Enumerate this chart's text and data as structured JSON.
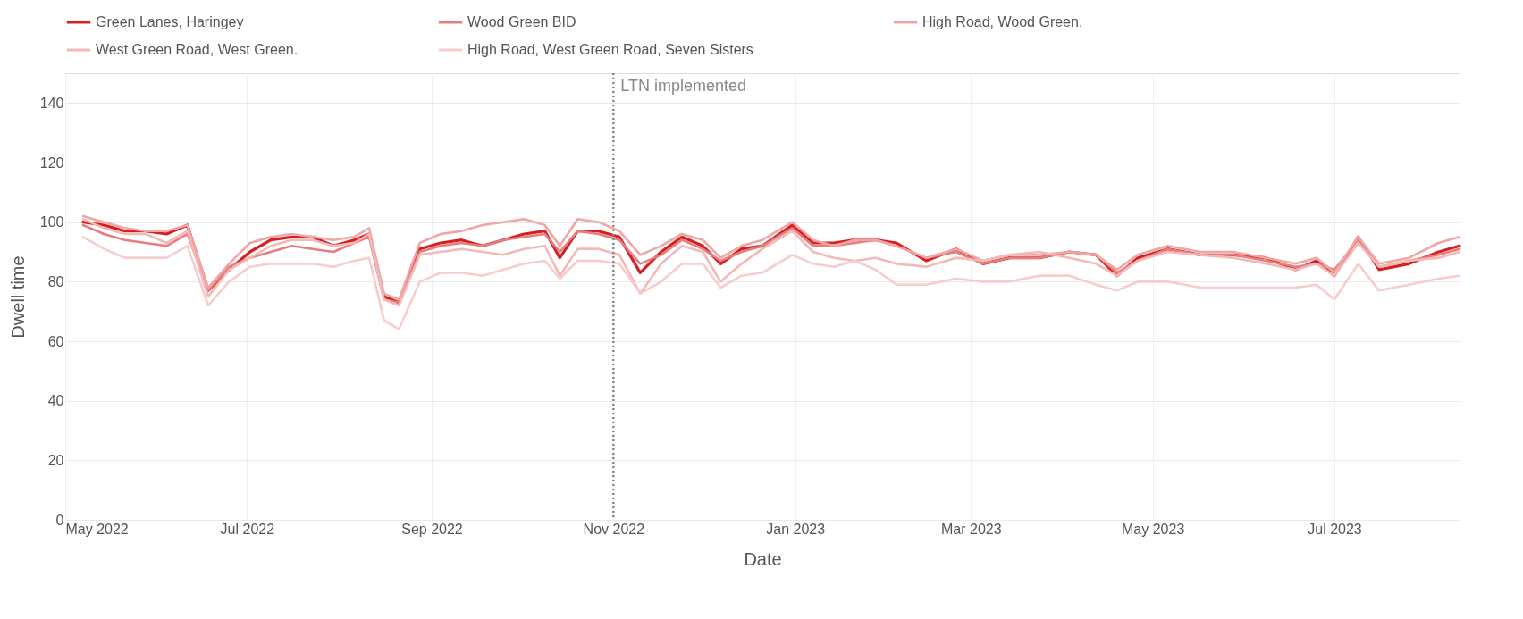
{
  "chart_data": {
    "type": "line",
    "xlabel": "Date",
    "ylabel": "Dwell time",
    "x": [
      "2022-05-07",
      "2022-05-14",
      "2022-05-21",
      "2022-05-28",
      "2022-06-04",
      "2022-06-11",
      "2022-06-18",
      "2022-06-25",
      "2022-07-02",
      "2022-07-09",
      "2022-07-16",
      "2022-07-23",
      "2022-07-30",
      "2022-08-06",
      "2022-08-11",
      "2022-08-16",
      "2022-08-21",
      "2022-08-28",
      "2022-09-04",
      "2022-09-11",
      "2022-09-18",
      "2022-09-25",
      "2022-10-02",
      "2022-10-09",
      "2022-10-14",
      "2022-10-20",
      "2022-10-27",
      "2022-11-03",
      "2022-11-10",
      "2022-11-17",
      "2022-11-24",
      "2022-12-01",
      "2022-12-07",
      "2022-12-14",
      "2022-12-21",
      "2022-12-31",
      "2023-01-07",
      "2023-01-14",
      "2023-01-21",
      "2023-01-28",
      "2023-02-04",
      "2023-02-14",
      "2023-02-24",
      "2023-03-05",
      "2023-03-14",
      "2023-03-24",
      "2023-04-03",
      "2023-04-12",
      "2023-04-19",
      "2023-04-26",
      "2023-05-06",
      "2023-05-17",
      "2023-05-28",
      "2023-06-08",
      "2023-06-18",
      "2023-06-25",
      "2023-07-01",
      "2023-07-09",
      "2023-07-16",
      "2023-07-26",
      "2023-08-05",
      "2023-08-12"
    ],
    "series": [
      {
        "name": "Green Lanes, Haringey",
        "color": "#d62020",
        "values": [
          100,
          99,
          97,
          97,
          96,
          99,
          77,
          84,
          90,
          94,
          95,
          95,
          92,
          94,
          96,
          75,
          73,
          91,
          93,
          94,
          92,
          94,
          96,
          97,
          88,
          97,
          97,
          95,
          83,
          90,
          95,
          92,
          86,
          91,
          92,
          99,
          93,
          93,
          94,
          94,
          93,
          87,
          91,
          86,
          88,
          88,
          90,
          89,
          82,
          88,
          91,
          89,
          89,
          88,
          84,
          87,
          82,
          95,
          84,
          86,
          90,
          92
        ]
      },
      {
        "name": "Wood Green BID",
        "color": "#e57e7e",
        "values": [
          99,
          96,
          94,
          93,
          92,
          96,
          77,
          85,
          88,
          90,
          92,
          91,
          90,
          93,
          95,
          74,
          73,
          90,
          92,
          93,
          92,
          94,
          95,
          96,
          90,
          97,
          96,
          94,
          86,
          89,
          94,
          91,
          87,
          90,
          92,
          98,
          92,
          92,
          93,
          94,
          92,
          88,
          90,
          86,
          88,
          88,
          90,
          89,
          83,
          87,
          91,
          89,
          89,
          87,
          85,
          86,
          84,
          94,
          85,
          87,
          89,
          91
        ]
      },
      {
        "name": "High Road, Wood Green.",
        "color": "#f0a6a6",
        "values": [
          102,
          100,
          98,
          97,
          97,
          99,
          78,
          86,
          93,
          95,
          96,
          95,
          94,
          95,
          98,
          76,
          74,
          93,
          96,
          97,
          99,
          100,
          101,
          99,
          92,
          101,
          100,
          97,
          89,
          92,
          96,
          94,
          88,
          92,
          94,
          100,
          94,
          92,
          94,
          94,
          92,
          88,
          91,
          87,
          89,
          89,
          90,
          89,
          84,
          89,
          92,
          90,
          90,
          88,
          86,
          88,
          83,
          95,
          86,
          88,
          93,
          95
        ]
      },
      {
        "name": "West Green Road, West Green.",
        "color": "#f2b9b9",
        "values": [
          101,
          98,
          96,
          96,
          93,
          97,
          75,
          84,
          88,
          92,
          94,
          94,
          92,
          93,
          96,
          74,
          72,
          89,
          90,
          91,
          90,
          89,
          91,
          92,
          82,
          91,
          91,
          89,
          76,
          86,
          92,
          90,
          80,
          86,
          91,
          97,
          90,
          88,
          87,
          88,
          86,
          85,
          88,
          87,
          89,
          90,
          88,
          86,
          82,
          87,
          90,
          89,
          88,
          86,
          84,
          86,
          82,
          93,
          85,
          87,
          88,
          90
        ]
      },
      {
        "name": "High Road, West Green Road, Seven Sisters",
        "color": "#f6cccc",
        "values": [
          95,
          91,
          88,
          88,
          88,
          92,
          72,
          80,
          85,
          86,
          86,
          86,
          85,
          87,
          88,
          67,
          64,
          80,
          83,
          83,
          82,
          84,
          86,
          87,
          81,
          87,
          87,
          86,
          76,
          80,
          86,
          86,
          78,
          82,
          83,
          89,
          86,
          85,
          87,
          84,
          79,
          79,
          81,
          80,
          80,
          82,
          82,
          79,
          77,
          80,
          80,
          78,
          78,
          78,
          78,
          79,
          74,
          86,
          77,
          79,
          81,
          82
        ]
      }
    ],
    "xlim": [
      "2022-05-01",
      "2023-08-12"
    ],
    "xticks": [
      {
        "value": "2022-05-01",
        "label": "May 2022"
      },
      {
        "value": "2022-07-01",
        "label": "Jul 2022"
      },
      {
        "value": "2022-09-01",
        "label": "Sep 2022"
      },
      {
        "value": "2022-11-01",
        "label": "Nov 2022"
      },
      {
        "value": "2023-01-01",
        "label": "Jan 2023"
      },
      {
        "value": "2023-03-01",
        "label": "Mar 2023"
      },
      {
        "value": "2023-05-01",
        "label": "May 2023"
      },
      {
        "value": "2023-07-01",
        "label": "Jul 2023"
      }
    ],
    "ylim": [
      0,
      150
    ],
    "yticks": [
      0,
      20,
      40,
      60,
      80,
      100,
      120,
      140
    ],
    "ref_lines": [
      {
        "axis": "x",
        "value": "2022-11-01",
        "label": "LTN implemented",
        "color": "#888888",
        "line_style": "dotted"
      }
    ],
    "grid": true,
    "legend": "top",
    "line_style": "solid",
    "marker": "none"
  }
}
